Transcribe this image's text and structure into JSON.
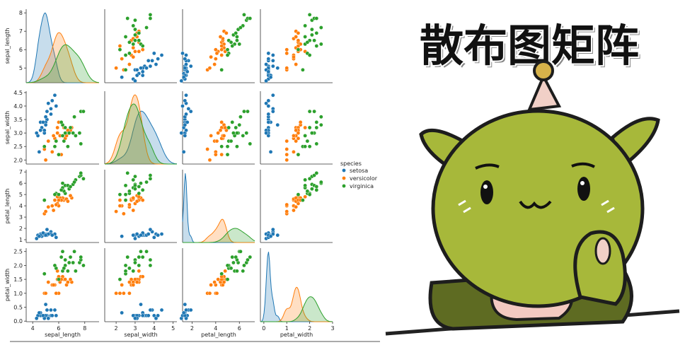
{
  "chart_data": {
    "type": "pairplot",
    "legend_title": "species",
    "variables": [
      {
        "label": "sepal_length",
        "xlim": [
          3.5,
          9.1
        ],
        "xticks": [
          4,
          6,
          8
        ],
        "ylim": [
          4.2,
          8.2
        ],
        "yticks": [
          5,
          6,
          7,
          8
        ]
      },
      {
        "label": "sepal_width",
        "xlim": [
          1.4,
          5.2
        ],
        "xticks": [
          2,
          3,
          4,
          5
        ],
        "ylim": [
          1.85,
          4.55
        ],
        "yticks": [
          {
            "value": 2,
            "label": "2.0"
          },
          2.5,
          {
            "value": 3,
            "label": "3.0"
          },
          3.5,
          {
            "value": 4,
            "label": "4.0"
          },
          4.5
        ]
      },
      {
        "label": "petal_length",
        "xlim": [
          1.2,
          7.3
        ],
        "xticks": [
          2,
          4,
          6
        ],
        "ylim": [
          0.75,
          7.2
        ],
        "yticks": [
          1,
          2,
          3,
          4,
          5,
          6,
          7
        ]
      },
      {
        "label": "petal_width",
        "xlim": [
          -0.15,
          3.0
        ],
        "xticks": [
          0,
          1,
          2,
          3
        ],
        "ylim": [
          -0.02,
          2.62
        ],
        "yticks": [
          {
            "value": 0,
            "label": "0.0"
          },
          0.5,
          {
            "value": 1,
            "label": "1.0"
          },
          1.5,
          {
            "value": 2,
            "label": "2.0"
          },
          2.5
        ]
      }
    ],
    "series": [
      {
        "name": "setosa",
        "color": "#1f77b4",
        "values": [
          [
            5.1,
            4.9,
            4.7,
            4.6,
            5.0,
            5.4,
            4.6,
            5.0,
            4.4,
            4.9,
            5.4,
            4.8,
            4.3,
            5.8,
            5.7,
            5.1,
            5.2,
            5.5,
            4.5,
            5.0
          ],
          [
            3.5,
            3.0,
            3.2,
            3.1,
            3.6,
            3.9,
            3.4,
            3.4,
            2.9,
            3.1,
            3.7,
            3.4,
            3.0,
            4.0,
            4.4,
            3.8,
            4.1,
            4.2,
            2.3,
            3.3
          ],
          [
            1.4,
            1.4,
            1.3,
            1.5,
            1.4,
            1.7,
            1.4,
            1.5,
            1.4,
            1.5,
            1.5,
            1.6,
            1.1,
            1.2,
            1.5,
            1.9,
            1.5,
            1.4,
            1.3,
            1.4
          ],
          [
            0.2,
            0.2,
            0.2,
            0.2,
            0.2,
            0.4,
            0.3,
            0.2,
            0.2,
            0.1,
            0.2,
            0.2,
            0.1,
            0.2,
            0.4,
            0.4,
            0.1,
            0.2,
            0.3,
            0.6
          ]
        ]
      },
      {
        "name": "versicolor",
        "color": "#ff7f0e",
        "values": [
          [
            7.0,
            6.4,
            6.9,
            5.5,
            6.5,
            5.7,
            6.3,
            4.9,
            6.6,
            5.2,
            5.0,
            5.9,
            6.0,
            6.1,
            5.6,
            6.7,
            5.8,
            6.2,
            5.9,
            6.0
          ],
          [
            3.2,
            3.2,
            3.1,
            2.3,
            2.8,
            2.8,
            3.3,
            2.4,
            2.9,
            2.7,
            2.0,
            3.0,
            2.2,
            2.9,
            2.9,
            3.1,
            2.7,
            2.2,
            3.2,
            3.4
          ],
          [
            4.7,
            4.5,
            4.9,
            4.0,
            4.6,
            4.5,
            4.7,
            3.3,
            4.6,
            3.9,
            3.5,
            4.2,
            4.0,
            4.7,
            3.6,
            4.4,
            4.1,
            4.5,
            4.8,
            4.5
          ],
          [
            1.4,
            1.5,
            1.5,
            1.3,
            1.5,
            1.3,
            1.6,
            1.0,
            1.3,
            1.4,
            1.0,
            1.5,
            1.0,
            1.4,
            1.3,
            1.4,
            1.0,
            1.5,
            1.8,
            1.6
          ]
        ]
      },
      {
        "name": "virginica",
        "color": "#2ca02c",
        "values": [
          [
            6.3,
            5.8,
            7.1,
            6.3,
            6.5,
            7.6,
            4.9,
            7.3,
            6.7,
            7.2,
            6.5,
            6.4,
            6.8,
            5.7,
            7.7,
            7.7,
            6.0,
            6.9,
            7.9,
            6.2
          ],
          [
            3.3,
            2.7,
            3.0,
            2.9,
            3.0,
            3.0,
            2.5,
            2.9,
            2.5,
            3.6,
            3.2,
            2.7,
            3.0,
            2.5,
            3.8,
            2.6,
            2.2,
            3.2,
            3.8,
            3.4
          ],
          [
            6.0,
            5.1,
            5.9,
            5.6,
            5.8,
            6.6,
            4.5,
            6.3,
            5.8,
            6.1,
            5.1,
            5.3,
            5.5,
            5.0,
            6.7,
            6.9,
            5.0,
            5.7,
            6.4,
            5.4
          ],
          [
            2.5,
            1.9,
            2.1,
            1.8,
            2.2,
            2.1,
            1.7,
            1.8,
            1.8,
            2.5,
            2.0,
            1.9,
            2.1,
            2.0,
            2.2,
            2.3,
            1.5,
            2.3,
            2.0,
            2.3
          ]
        ]
      }
    ]
  },
  "sticker": {
    "title": "散布图矩阵"
  }
}
